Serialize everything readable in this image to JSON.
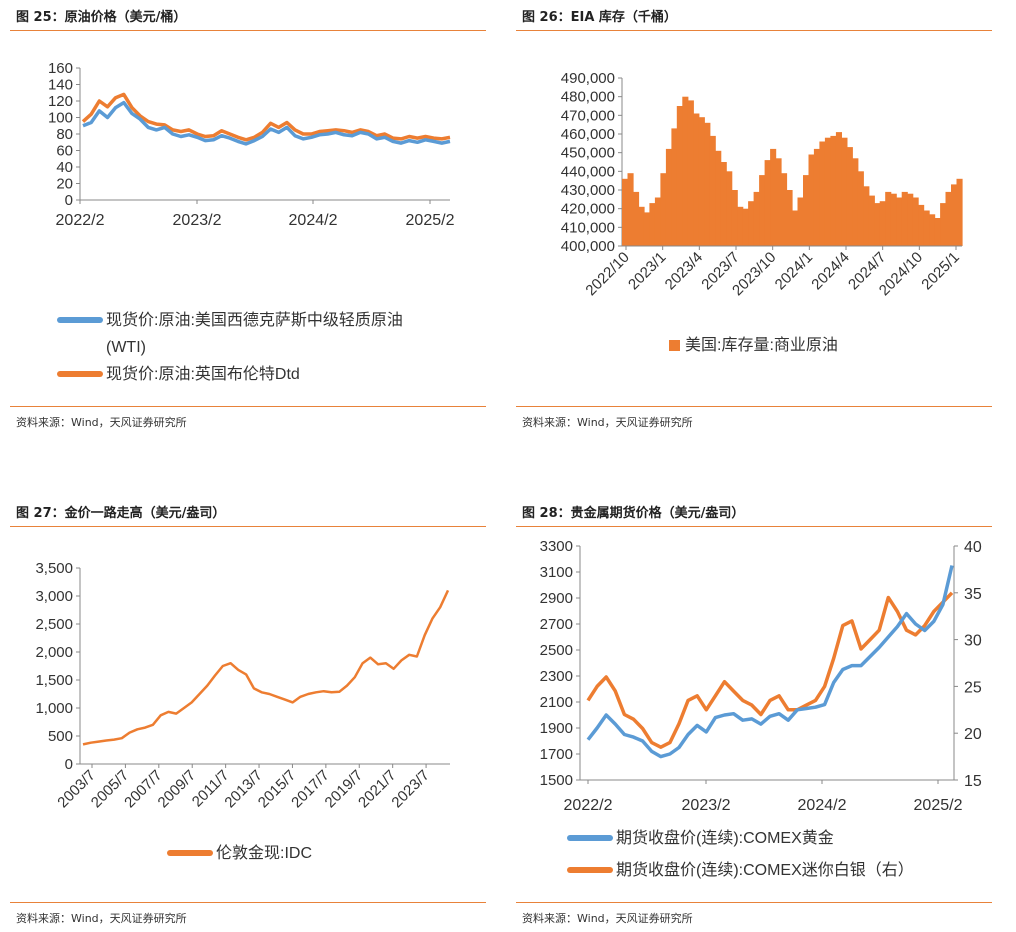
{
  "colors": {
    "orange": "#ED7D31",
    "blue": "#5B9BD5",
    "rule": "#E8823A",
    "axis": "#888888"
  },
  "panels": [
    {
      "title": "图 25：原油价格（美元/桶）",
      "source": "资料来源：Wind，天风证券研究所",
      "chart_data": {
        "type": "line",
        "title": "",
        "x_ticks": [
          "2022/2",
          "2023/2",
          "2024/2",
          "2025/2"
        ],
        "y_ticks": [
          "0",
          "20",
          "40",
          "60",
          "80",
          "100",
          "120",
          "140",
          "160"
        ],
        "ylim": [
          0,
          160
        ],
        "grid": false,
        "legend": "bottom",
        "series": [
          {
            "name": "现货价:原油:美国西德克萨斯中级轻质原油(WTI)",
            "color": "#5B9BD5",
            "values": [
              90,
              94,
              108,
              100,
              112,
              118,
              105,
              98,
              88,
              85,
              88,
              80,
              77,
              79,
              76,
              72,
              73,
              78,
              75,
              71,
              68,
              72,
              77,
              86,
              82,
              88,
              78,
              74,
              76,
              79,
              80,
              82,
              79,
              78,
              82,
              80,
              74,
              76,
              71,
              69,
              72,
              70,
              73,
              71,
              69,
              71
            ]
          },
          {
            "name": "现货价:原油:英国布伦特Dtd",
            "color": "#ED7D31",
            "values": [
              95,
              104,
              120,
              113,
              124,
              128,
              112,
              102,
              95,
              92,
              91,
              85,
              83,
              85,
              80,
              77,
              78,
              84,
              80,
              76,
              73,
              76,
              82,
              93,
              88,
              94,
              85,
              80,
              80,
              83,
              84,
              85,
              84,
              82,
              85,
              83,
              78,
              80,
              75,
              74,
              77,
              75,
              77,
              75,
              74,
              76
            ]
          }
        ]
      }
    },
    {
      "title": "图 26：EIA 库存（千桶）",
      "source": "资料来源：Wind，天风证券研究所",
      "chart_data": {
        "type": "area",
        "title": "",
        "x_ticks": [
          "2022/10",
          "2023/1",
          "2023/4",
          "2023/7",
          "2023/10",
          "2024/1",
          "2024/4",
          "2024/7",
          "2024/10",
          "2025/1"
        ],
        "y_ticks": [
          "400,000",
          "410,000",
          "420,000",
          "430,000",
          "440,000",
          "450,000",
          "460,000",
          "470,000",
          "480,000",
          "490,000"
        ],
        "ylim": [
          400000,
          490000
        ],
        "grid": false,
        "legend": "bottom",
        "series": [
          {
            "name": "美国:库存量:商业原油",
            "color": "#ED7D31",
            "values": [
              436,
              439,
              429,
              421,
              418,
              423,
              426,
              439,
              452,
              463,
              475,
              480,
              478,
              471,
              469,
              466,
              459,
              451,
              445,
              440,
              430,
              421,
              420,
              424,
              429,
              438,
              446,
              452,
              447,
              439,
              430,
              419,
              426,
              438,
              449,
              452,
              456,
              458,
              459,
              461,
              458,
              453,
              447,
              440,
              432,
              427,
              423,
              424,
              429,
              428,
              426,
              429,
              428,
              426,
              422,
              419,
              417,
              415,
              423,
              429,
              433,
              436
            ]
          }
        ]
      }
    },
    {
      "title": "图 27：金价一路走高（美元/盎司）",
      "source": "资料来源：Wind，天风证券研究所",
      "chart_data": {
        "type": "line",
        "title": "",
        "x_ticks": [
          "2003/7",
          "2005/7",
          "2007/7",
          "2009/7",
          "2011/7",
          "2013/7",
          "2015/7",
          "2017/7",
          "2019/7",
          "2021/7",
          "2023/7"
        ],
        "y_ticks": [
          "0",
          "500",
          "1,000",
          "1,500",
          "2,000",
          "2,500",
          "3,000",
          "3,500"
        ],
        "ylim": [
          0,
          3500
        ],
        "grid": false,
        "legend": "bottom",
        "series": [
          {
            "name": "伦敦金现:IDC",
            "color": "#ED7D31",
            "values": [
              350,
              380,
              400,
              420,
              435,
              460,
              560,
              620,
              650,
              700,
              870,
              930,
              900,
              1000,
              1100,
              1250,
              1400,
              1580,
              1750,
              1800,
              1680,
              1600,
              1350,
              1280,
              1250,
              1200,
              1150,
              1100,
              1200,
              1250,
              1280,
              1300,
              1280,
              1290,
              1400,
              1550,
              1800,
              1900,
              1780,
              1800,
              1700,
              1850,
              1950,
              1920,
              2300,
              2600,
              2800,
              3100
            ]
          }
        ]
      }
    },
    {
      "title": "图 28：贵金属期货价格（美元/盎司）",
      "source": "资料来源：Wind，天风证券研究所",
      "chart_data": {
        "type": "line",
        "title": "",
        "x_ticks": [
          "2022/2",
          "2023/2",
          "2024/2",
          "2025/2"
        ],
        "y_ticks_left": [
          "1500",
          "1700",
          "1900",
          "2100",
          "2300",
          "2500",
          "2700",
          "2900",
          "3100",
          "3300"
        ],
        "y_ticks_right": [
          "15",
          "20",
          "25",
          "30",
          "35",
          "40"
        ],
        "ylim_left": [
          1500,
          3300
        ],
        "ylim_right": [
          15,
          40
        ],
        "grid": false,
        "legend": "bottom",
        "series": [
          {
            "name": "期货收盘价(连续):COMEX黄金",
            "color": "#5B9BD5",
            "axis": "left",
            "values": [
              1810,
              1900,
              2000,
              1930,
              1850,
              1830,
              1800,
              1720,
              1680,
              1700,
              1750,
              1850,
              1920,
              1870,
              1980,
              2000,
              2010,
              1960,
              1970,
              1930,
              1990,
              2010,
              1960,
              2040,
              2050,
              2060,
              2080,
              2250,
              2350,
              2380,
              2380,
              2450,
              2520,
              2600,
              2680,
              2780,
              2700,
              2650,
              2720,
              2850,
              3150
            ]
          },
          {
            "name": "期货收盘价(连续):COMEX迷你白银（右）",
            "color": "#ED7D31",
            "axis": "right",
            "values": [
              23.5,
              25.0,
              26.0,
              24.5,
              22.0,
              21.5,
              20.5,
              19.0,
              18.5,
              19.0,
              21.0,
              23.5,
              24.0,
              22.5,
              24.0,
              25.5,
              24.5,
              23.5,
              23.0,
              22.0,
              23.5,
              24.0,
              22.5,
              22.5,
              23.0,
              23.5,
              25.0,
              28.0,
              31.5,
              32.0,
              29.0,
              30.0,
              31.0,
              34.5,
              33.0,
              31.0,
              30.5,
              31.5,
              33.0,
              34.0,
              35.0
            ]
          }
        ]
      }
    }
  ]
}
